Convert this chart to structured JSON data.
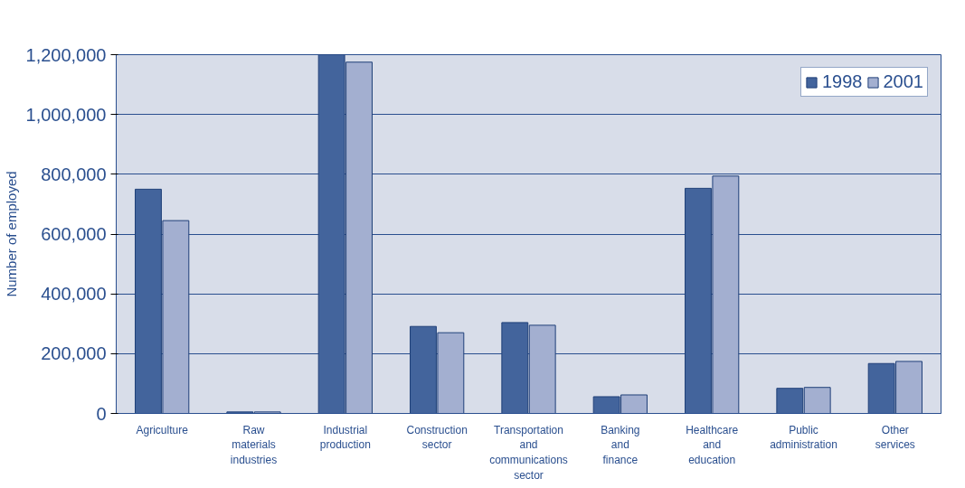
{
  "chart_data": {
    "type": "bar",
    "ylabel": "Number of employed",
    "categories": [
      "Agriculture",
      "Raw materials industries",
      "Industrial production",
      "Construction sector",
      "Transportation and communications sector",
      "Banking and finance",
      "Healthcare and education",
      "Public administration",
      "Other services"
    ],
    "series": [
      {
        "name": "1998",
        "color": "#43649c",
        "values": [
          750000,
          5000,
          1200000,
          291000,
          304000,
          56000,
          753000,
          84000,
          167000
        ]
      },
      {
        "name": "2001",
        "color": "#a3afd0",
        "values": [
          645000,
          5000,
          1175000,
          270000,
          295000,
          62000,
          794000,
          87000,
          174000
        ]
      }
    ],
    "ylim": [
      0,
      1200000
    ],
    "yticks": [
      {
        "value": 0,
        "label": "0"
      },
      {
        "value": 200000,
        "label": "200,000"
      },
      {
        "value": 400000,
        "label": "400,000"
      },
      {
        "value": 600000,
        "label": "600,000"
      },
      {
        "value": 800000,
        "label": "800,000"
      },
      {
        "value": 1000000,
        "label": "1,000,000"
      },
      {
        "value": 1200000,
        "label": "1,200,000"
      }
    ],
    "grid": "y",
    "legend": "top right"
  }
}
